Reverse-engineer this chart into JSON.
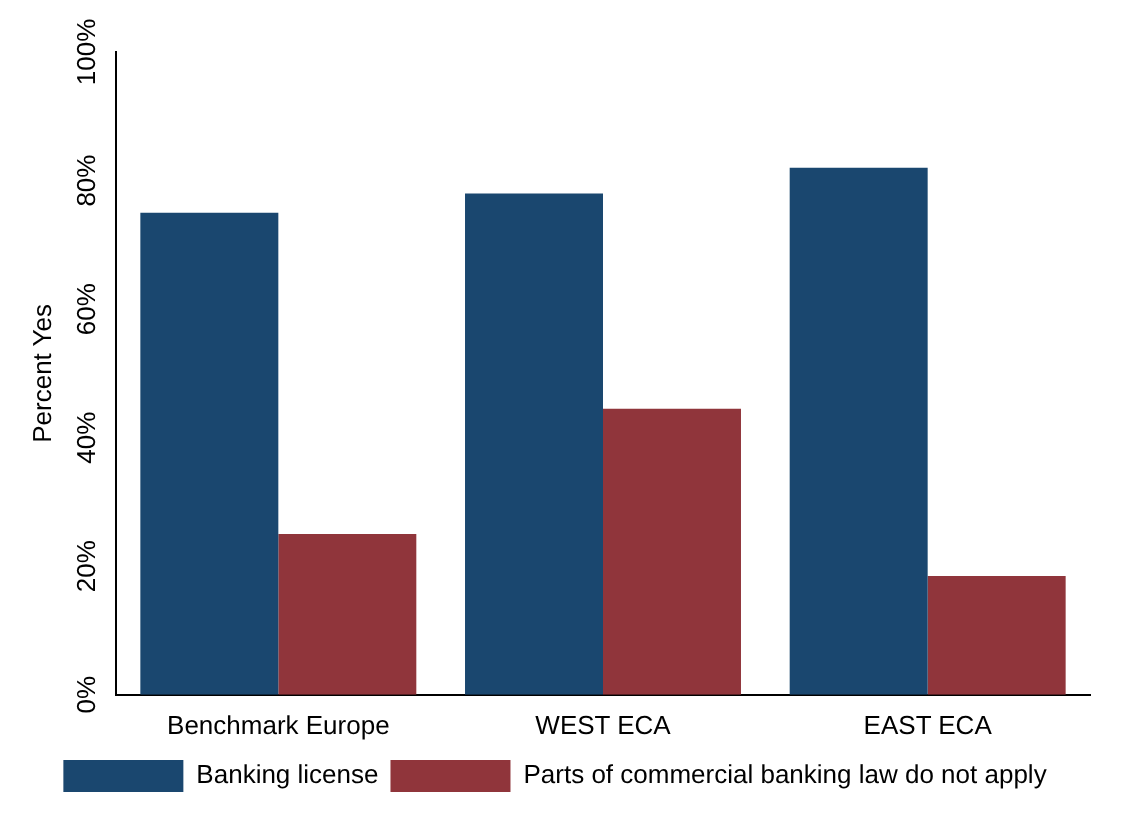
{
  "chart_data": {
    "type": "bar",
    "ylabel": "Percent Yes",
    "categories": [
      "Benchmark Europe",
      "WEST ECA",
      "EAST ECA"
    ],
    "series": [
      {
        "name": "Banking license",
        "color": "#1a476f",
        "values": [
          75,
          78,
          82
        ]
      },
      {
        "name": "Parts of commercial banking law do not apply",
        "color": "#90353b",
        "values": [
          25,
          44.5,
          18.5
        ]
      }
    ],
    "ylim": [
      0,
      100
    ],
    "yticks": [
      {
        "value": 0,
        "label": "0%"
      },
      {
        "value": 20,
        "label": "20%"
      },
      {
        "value": 40,
        "label": "40%"
      },
      {
        "value": 60,
        "label": "60%"
      },
      {
        "value": 80,
        "label": "80%"
      },
      {
        "value": 100,
        "label": "100%"
      }
    ],
    "grid": false,
    "legend": "bottom"
  }
}
